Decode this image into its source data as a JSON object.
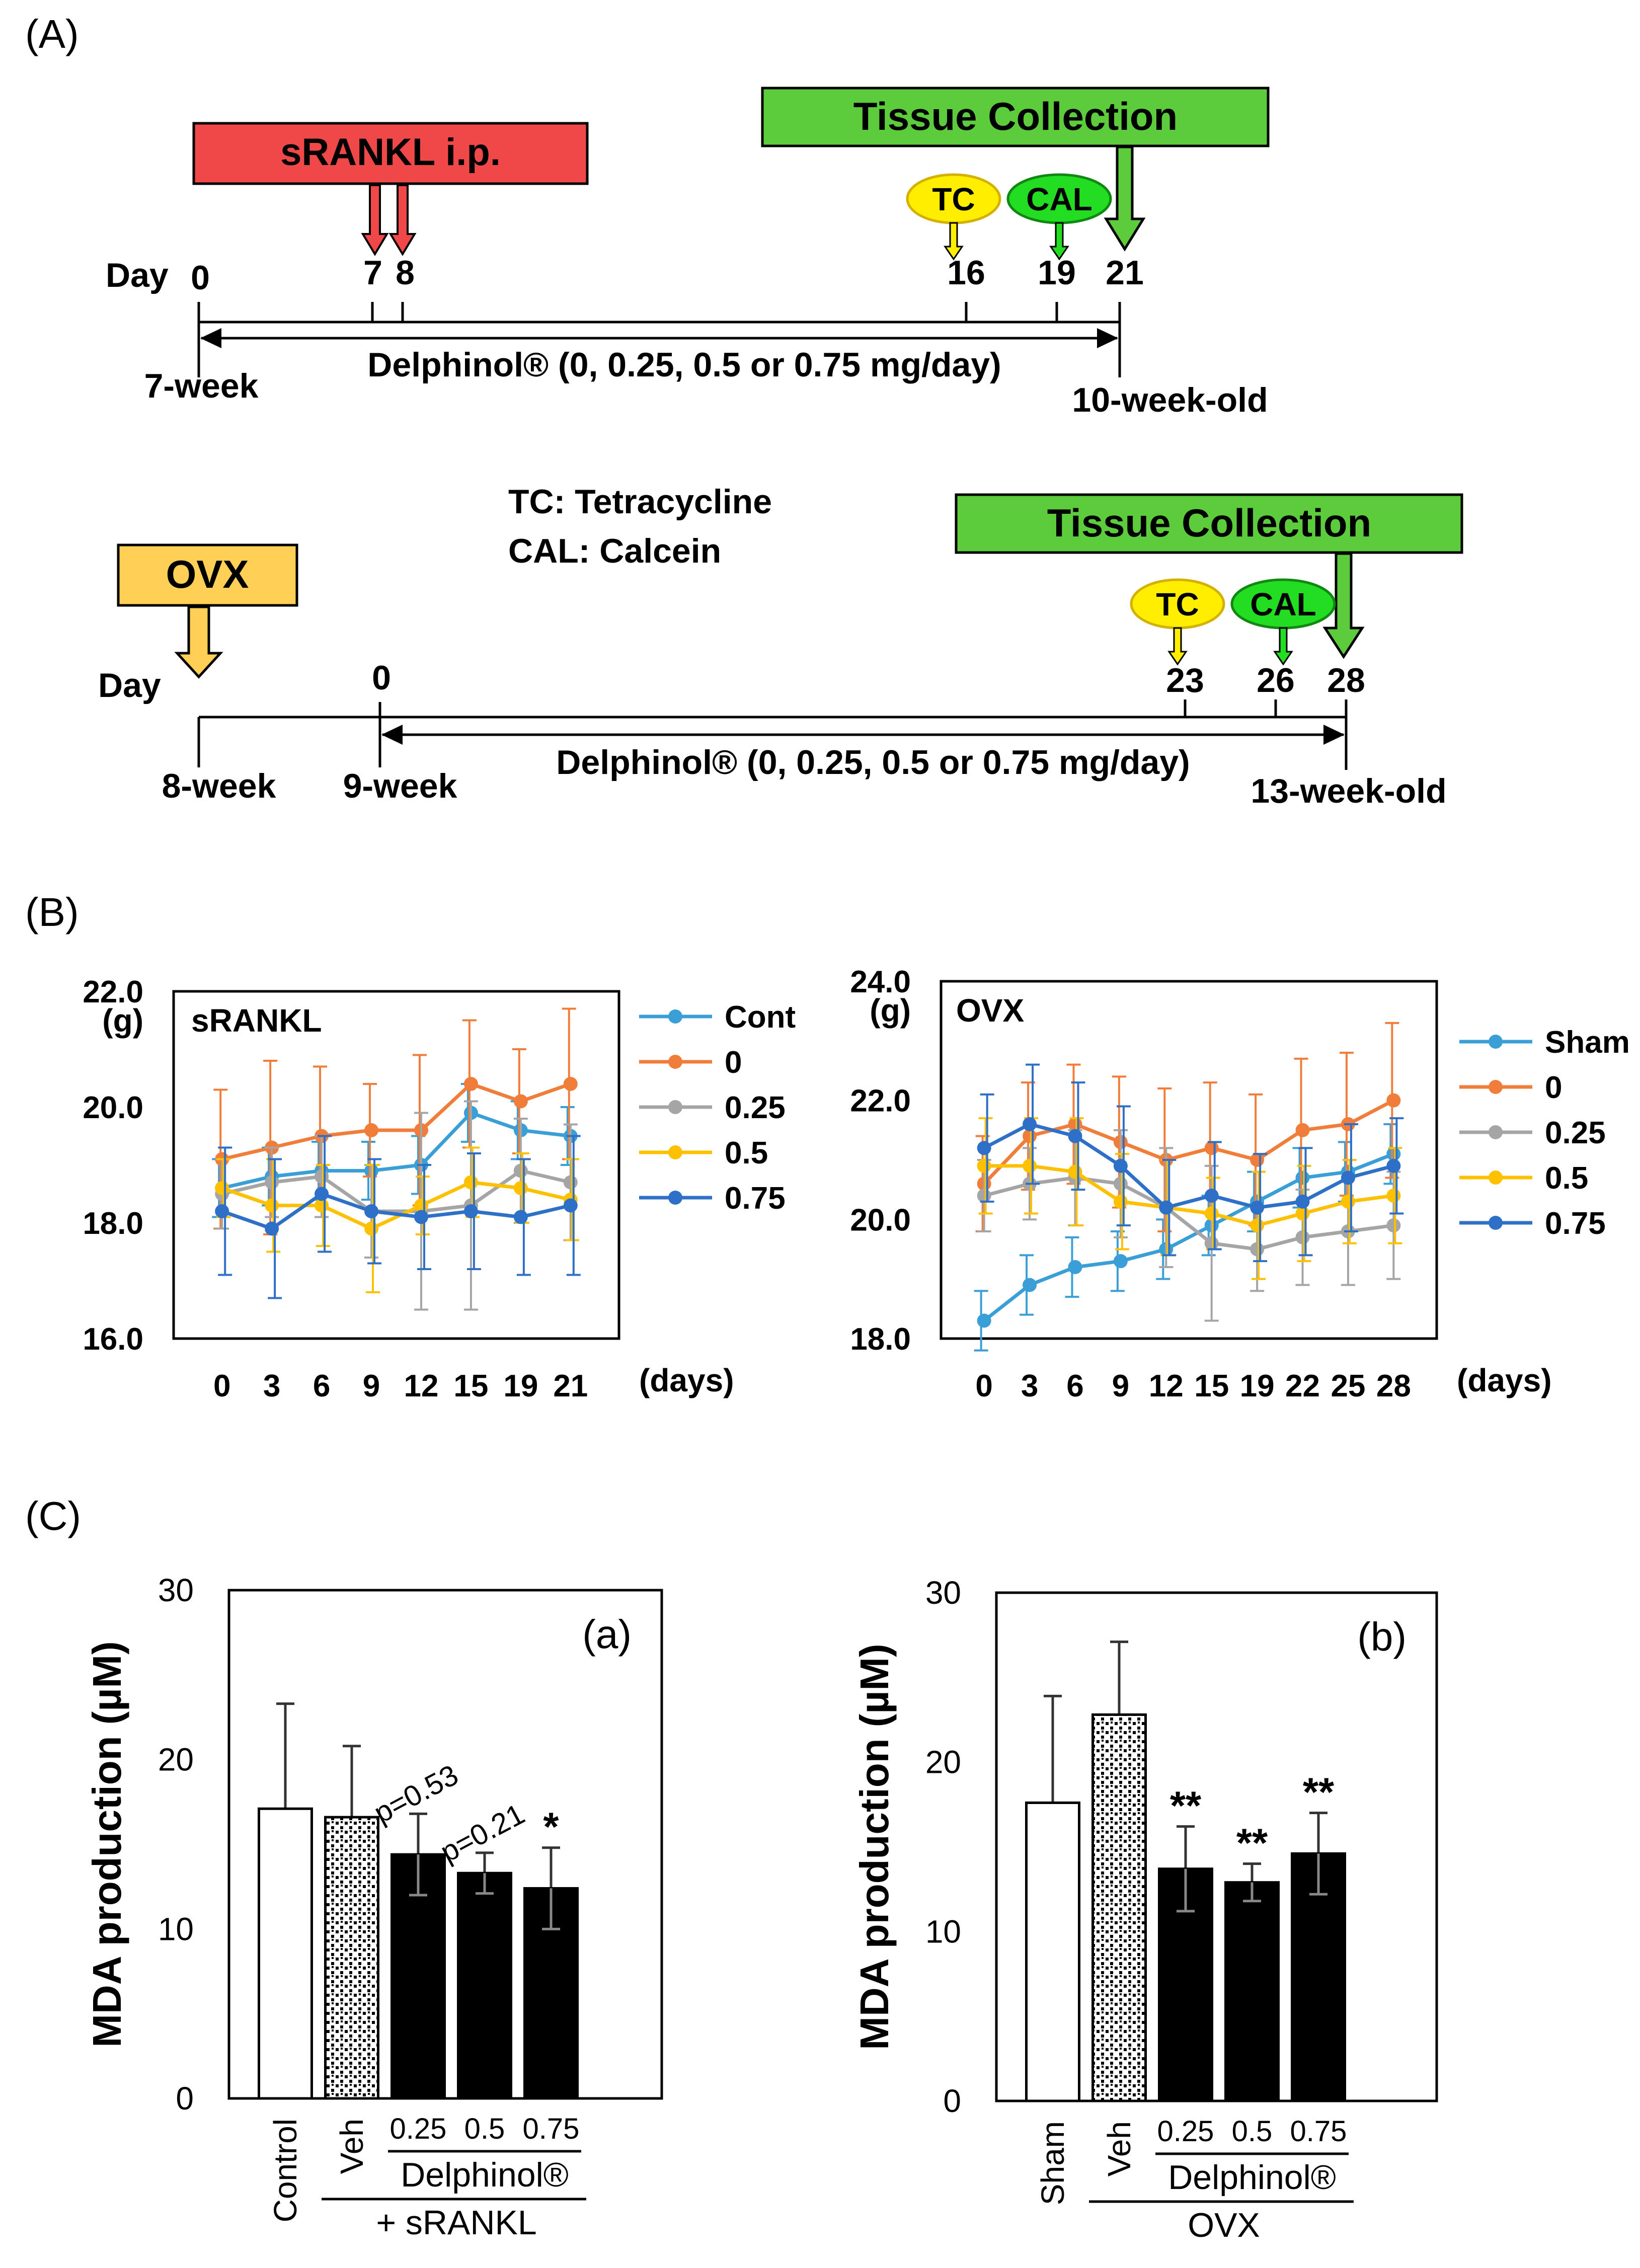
{
  "labels": {
    "a": "(A)",
    "b": "(B)",
    "c": "(C)"
  },
  "timeline1": {
    "srankl_label": "sRANKL i.p.",
    "tissue_label": "Tissue Collection",
    "tc": "TC",
    "cal": "CAL",
    "day_label": "Day",
    "days": [
      "0",
      "7",
      "8",
      "16",
      "19",
      "21"
    ],
    "start_age": "7-week",
    "end_age": "10-week-old",
    "treatment": "Delphinol® (0, 0.25, 0.5 or 0.75 mg/day)"
  },
  "timeline2": {
    "ovx_label": "OVX",
    "tissue_label": "Tissue Collection",
    "tc": "TC",
    "cal": "CAL",
    "day_label": "Day",
    "days": [
      "0",
      "23",
      "26",
      "28"
    ],
    "age_8": "8-week",
    "age_9": "9-week",
    "end_age": "13-week-old",
    "treatment": "Delphinol® (0, 0.25, 0.5 or 0.75 mg/day)",
    "legend_tc": "TC:  Tetracycline",
    "legend_cal": "CAL: Calcein"
  },
  "chart_data": [
    {
      "type": "line",
      "title": "sRANKL",
      "ylabel": "(g)",
      "xlabel": "(days)",
      "ylim": [
        16.0,
        22.0
      ],
      "yticks": [
        "16.0",
        "18.0",
        "20.0",
        "22.0"
      ],
      "x": [
        "0",
        "3",
        "6",
        "9",
        "12",
        "15",
        "19",
        "21"
      ],
      "series": [
        {
          "name": "Cont",
          "color": "#3a9fd6",
          "values": [
            18.6,
            18.8,
            18.9,
            18.9,
            19.0,
            19.9,
            19.6,
            19.5
          ],
          "err": [
            0.5,
            0.5,
            0.5,
            0.5,
            0.5,
            0.5,
            0.5,
            0.5
          ]
        },
        {
          "name": "0",
          "color": "#f07d3a",
          "values": [
            19.1,
            19.3,
            19.5,
            19.6,
            19.6,
            20.4,
            20.1,
            20.4
          ],
          "err": [
            1.2,
            1.5,
            1.2,
            0.8,
            1.3,
            1.1,
            0.9,
            1.3
          ]
        },
        {
          "name": "0.25",
          "color": "#a5a5a5",
          "values": [
            18.5,
            18.7,
            18.8,
            18.2,
            18.2,
            18.3,
            18.9,
            18.7
          ],
          "err": [
            0.6,
            0.6,
            0.7,
            0.8,
            1.7,
            1.8,
            0.9,
            1.0
          ]
        },
        {
          "name": "0.5",
          "color": "#ffc000",
          "values": [
            18.6,
            18.3,
            18.3,
            17.9,
            18.3,
            18.7,
            18.6,
            18.4
          ],
          "err": [
            0.5,
            0.8,
            0.7,
            1.1,
            0.5,
            0.6,
            0.6,
            0.7
          ]
        },
        {
          "name": "0.75",
          "color": "#2e6fc8",
          "values": [
            18.2,
            17.9,
            18.5,
            18.2,
            18.1,
            18.2,
            18.1,
            18.3
          ],
          "err": [
            1.1,
            1.2,
            1.0,
            0.9,
            0.9,
            1.0,
            1.0,
            1.2
          ]
        }
      ]
    },
    {
      "type": "line",
      "title": "OVX",
      "ylabel": "(g)",
      "xlabel": "(days)",
      "ylim": [
        18.0,
        24.0
      ],
      "yticks": [
        "18.0",
        "20.0",
        "22.0",
        "24.0"
      ],
      "x": [
        "0",
        "3",
        "6",
        "9",
        "12",
        "15",
        "19",
        "22",
        "25",
        "28"
      ],
      "series": [
        {
          "name": "Sham",
          "color": "#3a9fd6",
          "values": [
            18.3,
            18.9,
            19.2,
            19.3,
            19.5,
            19.9,
            20.3,
            20.7,
            20.8,
            21.1
          ],
          "err": [
            0.5,
            0.5,
            0.5,
            0.5,
            0.5,
            0.5,
            0.5,
            0.5,
            0.5,
            0.5
          ]
        },
        {
          "name": "0",
          "color": "#f07d3a",
          "values": [
            20.6,
            21.4,
            21.6,
            21.3,
            21.0,
            21.2,
            21.0,
            21.5,
            21.6,
            22.0
          ],
          "err": [
            0.8,
            0.9,
            1.0,
            1.1,
            1.2,
            1.1,
            1.1,
            1.2,
            1.2,
            1.3
          ]
        },
        {
          "name": "0.25",
          "color": "#a5a5a5",
          "values": [
            20.4,
            20.6,
            20.7,
            20.6,
            20.2,
            19.6,
            19.5,
            19.7,
            19.8,
            19.9
          ],
          "err": [
            0.6,
            0.6,
            0.8,
            0.9,
            1.0,
            1.3,
            0.7,
            0.8,
            0.9,
            0.9
          ]
        },
        {
          "name": "0.5",
          "color": "#ffc000",
          "values": [
            20.9,
            20.9,
            20.8,
            20.3,
            20.2,
            20.1,
            19.9,
            20.1,
            20.3,
            20.4
          ],
          "err": [
            0.8,
            0.8,
            0.9,
            0.8,
            0.8,
            0.6,
            0.9,
            0.8,
            0.7,
            0.8
          ]
        },
        {
          "name": "0.75",
          "color": "#2e6fc8",
          "values": [
            21.2,
            21.6,
            21.4,
            20.9,
            20.2,
            20.4,
            20.2,
            20.3,
            20.7,
            20.9
          ],
          "err": [
            0.9,
            1.0,
            0.9,
            1.0,
            0.8,
            0.9,
            0.9,
            0.9,
            0.9,
            0.8
          ]
        }
      ]
    },
    {
      "type": "bar",
      "panel_tag": "(a)",
      "ylabel": "MDA production (µM)",
      "ylim": [
        0,
        30
      ],
      "yticks": [
        "0",
        "10",
        "20",
        "30"
      ],
      "categories": [
        "Control",
        "Veh",
        "0.25",
        "0.5",
        "0.75"
      ],
      "values": [
        17.1,
        16.6,
        14.4,
        13.3,
        12.4
      ],
      "err": [
        6.2,
        4.2,
        2.4,
        1.2,
        2.4
      ],
      "fills": [
        "white",
        "dots",
        "black",
        "black",
        "black"
      ],
      "annotations": [
        "",
        "",
        "p=0.53",
        "p=0.21",
        "*"
      ],
      "group_label": "Delphinol®",
      "group_label2": "+ sRANKL"
    },
    {
      "type": "bar",
      "panel_tag": "(b)",
      "ylabel": "MDA production (µM)",
      "ylim": [
        0,
        30
      ],
      "yticks": [
        "0",
        "10",
        "20",
        "30"
      ],
      "categories": [
        "Sham",
        "Veh",
        "0.25",
        "0.5",
        "0.75"
      ],
      "values": [
        17.6,
        22.8,
        13.7,
        12.9,
        14.6
      ],
      "err": [
        6.3,
        4.3,
        2.5,
        1.1,
        2.4
      ],
      "fills": [
        "white",
        "dots",
        "black",
        "black",
        "black"
      ],
      "annotations": [
        "",
        "",
        "**",
        "**",
        "**"
      ],
      "group_label": "Delphinol®",
      "group_label2": "OVX"
    }
  ]
}
